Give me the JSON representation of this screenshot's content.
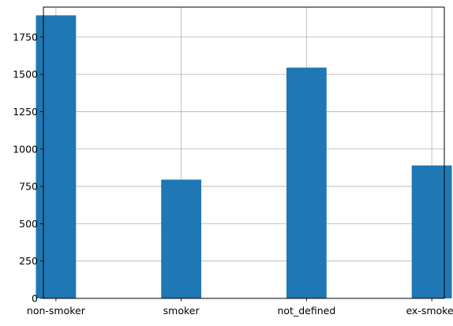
{
  "chart_data": {
    "type": "bar",
    "categories": [
      "non-smoker",
      "smoker",
      "not_defined",
      "ex-smoker"
    ],
    "values": [
      1895,
      795,
      1545,
      890
    ],
    "title": "",
    "xlabel": "",
    "ylabel": "",
    "ylim": [
      0,
      1950
    ],
    "yticks": [
      0,
      250,
      500,
      750,
      1000,
      1250,
      1500,
      1750
    ],
    "grid": true,
    "legend": "none",
    "bar_color": "#1f77b4",
    "grid_color": "#b0b0b0"
  }
}
